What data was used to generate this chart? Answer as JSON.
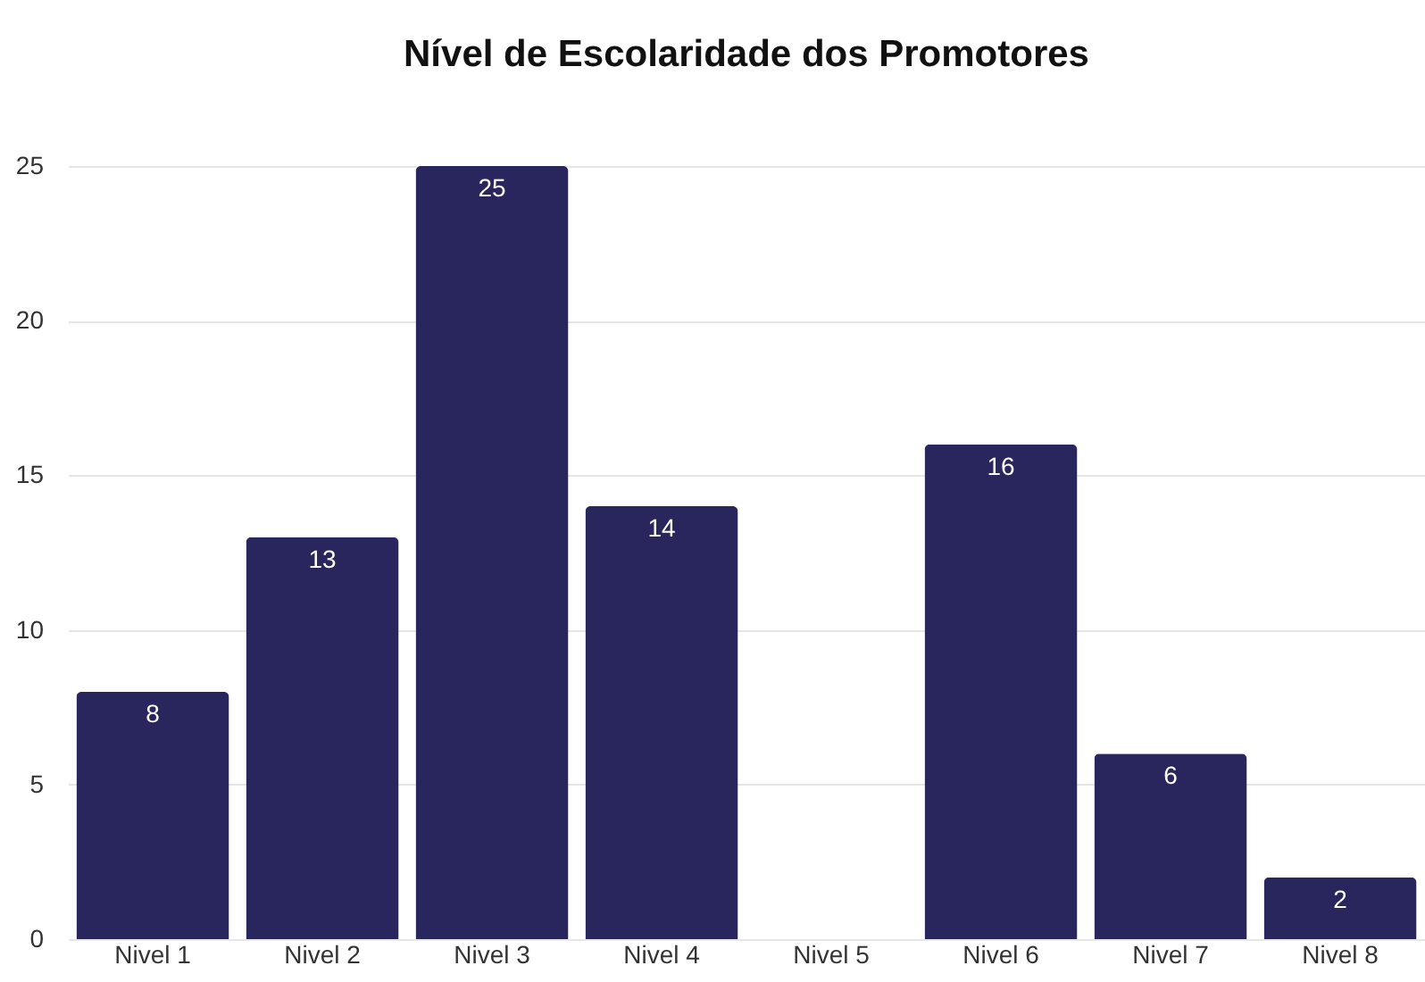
{
  "chart_data": {
    "type": "bar",
    "title": "Nível de Escolaridade dos Promotores",
    "categories": [
      "Nivel 1",
      "Nivel 2",
      "Nivel 3",
      "Nivel 4",
      "Nivel 5",
      "Nivel 6",
      "Nivel 7",
      "Nivel 8"
    ],
    "values": [
      8,
      13,
      25,
      14,
      0,
      16,
      6,
      2
    ],
    "value_labels": [
      "8",
      "13",
      "25",
      "14",
      null,
      "16",
      "6",
      "2"
    ],
    "color": "#29265e",
    "ylim": [
      0,
      25
    ],
    "yticks": [
      0,
      5,
      10,
      15,
      20,
      25
    ],
    "grid": "y"
  }
}
